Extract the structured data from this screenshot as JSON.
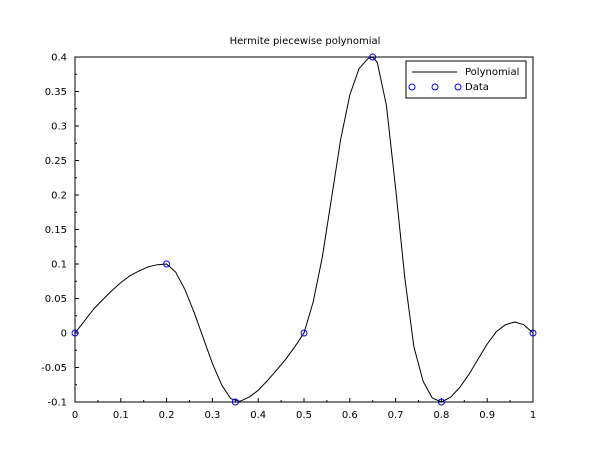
{
  "chart_data": {
    "type": "line",
    "title": "Hermite piecewise polynomial",
    "xlabel": "",
    "ylabel": "",
    "xlim": [
      0,
      1
    ],
    "ylim": [
      -0.1,
      0.4
    ],
    "x_ticks": [
      0,
      0.1,
      0.2,
      0.3,
      0.4,
      0.5,
      0.6,
      0.7,
      0.8,
      0.9,
      1
    ],
    "x_tick_labels": [
      "0",
      "0.1",
      "0.2",
      "0.3",
      "0.4",
      "0.5",
      "0.6",
      "0.7",
      "0.8",
      "0.9",
      "1"
    ],
    "y_ticks": [
      -0.1,
      -0.05,
      0,
      0.05,
      0.1,
      0.15,
      0.2,
      0.25,
      0.3,
      0.35,
      0.4
    ],
    "y_tick_labels": [
      "-0.1",
      "-0.05",
      "0",
      "0.05",
      "0.1",
      "0.15",
      "0.2",
      "0.25",
      "0.3",
      "0.35",
      "0.4"
    ],
    "grid": false,
    "legend_position": "top-right",
    "series": [
      {
        "name": "Polynomial",
        "style": "line",
        "color": "#000000",
        "x": [
          0,
          0.02,
          0.04,
          0.06,
          0.08,
          0.1,
          0.12,
          0.14,
          0.16,
          0.18,
          0.2,
          0.22,
          0.24,
          0.26,
          0.28,
          0.3,
          0.32,
          0.34,
          0.36,
          0.38,
          0.4,
          0.42,
          0.44,
          0.46,
          0.48,
          0.5,
          0.52,
          0.54,
          0.56,
          0.58,
          0.6,
          0.62,
          0.64,
          0.65,
          0.66,
          0.68,
          0.7,
          0.72,
          0.74,
          0.76,
          0.78,
          0.8,
          0.82,
          0.84,
          0.86,
          0.88,
          0.9,
          0.92,
          0.94,
          0.96,
          0.98,
          1.0
        ],
        "y": [
          0,
          0.017,
          0.034,
          0.048,
          0.061,
          0.073,
          0.083,
          0.09,
          0.096,
          0.099,
          0.1,
          0.088,
          0.063,
          0.03,
          -0.007,
          -0.044,
          -0.075,
          -0.095,
          -0.099,
          -0.093,
          -0.083,
          -0.069,
          -0.054,
          -0.038,
          -0.02,
          0.0,
          0.045,
          0.11,
          0.195,
          0.28,
          0.345,
          0.383,
          0.398,
          0.4,
          0.392,
          0.33,
          0.21,
          0.08,
          -0.02,
          -0.07,
          -0.094,
          -0.1,
          -0.093,
          -0.079,
          -0.06,
          -0.038,
          -0.016,
          0.002,
          0.012,
          0.016,
          0.012,
          0.0
        ]
      },
      {
        "name": "Data",
        "style": "markers",
        "marker": "circle",
        "color": "#0000ff",
        "x": [
          0,
          0.2,
          0.35,
          0.5,
          0.65,
          0.8,
          1.0
        ],
        "y": [
          0,
          0.1,
          -0.1,
          0,
          0.4,
          -0.1,
          0
        ]
      }
    ]
  }
}
